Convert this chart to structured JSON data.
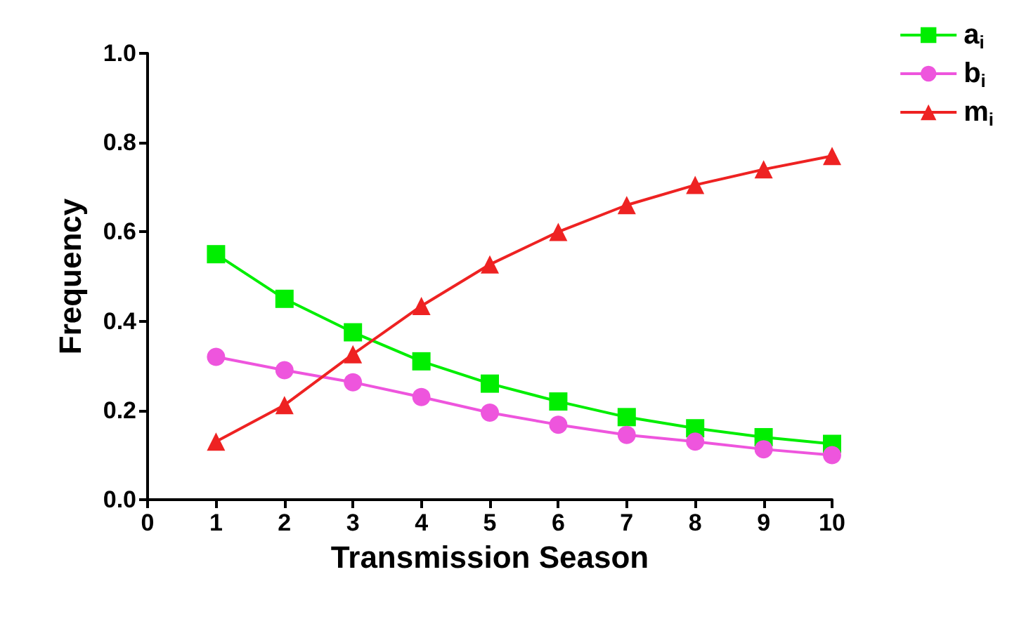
{
  "chart_data": {
    "type": "line",
    "xlabel": "Transmission Season",
    "ylabel": "Frequency",
    "x": [
      1,
      2,
      3,
      4,
      5,
      6,
      7,
      8,
      9,
      10
    ],
    "series": [
      {
        "name": "a$_{i}$",
        "color": "#00ee00",
        "marker": "square",
        "values": [
          0.55,
          0.45,
          0.375,
          0.31,
          0.26,
          0.22,
          0.185,
          0.16,
          0.14,
          0.125
        ]
      },
      {
        "name": "b$_{i}$",
        "color": "#ee55dd",
        "marker": "circle",
        "values": [
          0.32,
          0.29,
          0.263,
          0.23,
          0.195,
          0.168,
          0.145,
          0.13,
          0.113,
          0.1
        ]
      },
      {
        "name": "m$_{i}$",
        "color": "#ee2222",
        "marker": "triangle",
        "values": [
          0.13,
          0.212,
          0.326,
          0.434,
          0.527,
          0.6,
          0.66,
          0.705,
          0.74,
          0.77
        ]
      }
    ],
    "xlim": [
      0,
      10
    ],
    "xticks": [
      0,
      1,
      2,
      3,
      4,
      5,
      6,
      7,
      8,
      9,
      10
    ],
    "ylim": [
      0,
      1
    ],
    "yticks": [
      {
        "value": 0,
        "label": "0.0"
      },
      {
        "value": 0.2,
        "label": "0.2"
      },
      {
        "value": 0.4,
        "label": "0.4"
      },
      {
        "value": 0.6,
        "label": "0.6"
      },
      {
        "value": 0.8,
        "label": "0.8"
      },
      {
        "value": 1,
        "label": "1.0"
      }
    ],
    "grid": false,
    "legend": "top right",
    "line_style": "solid"
  }
}
